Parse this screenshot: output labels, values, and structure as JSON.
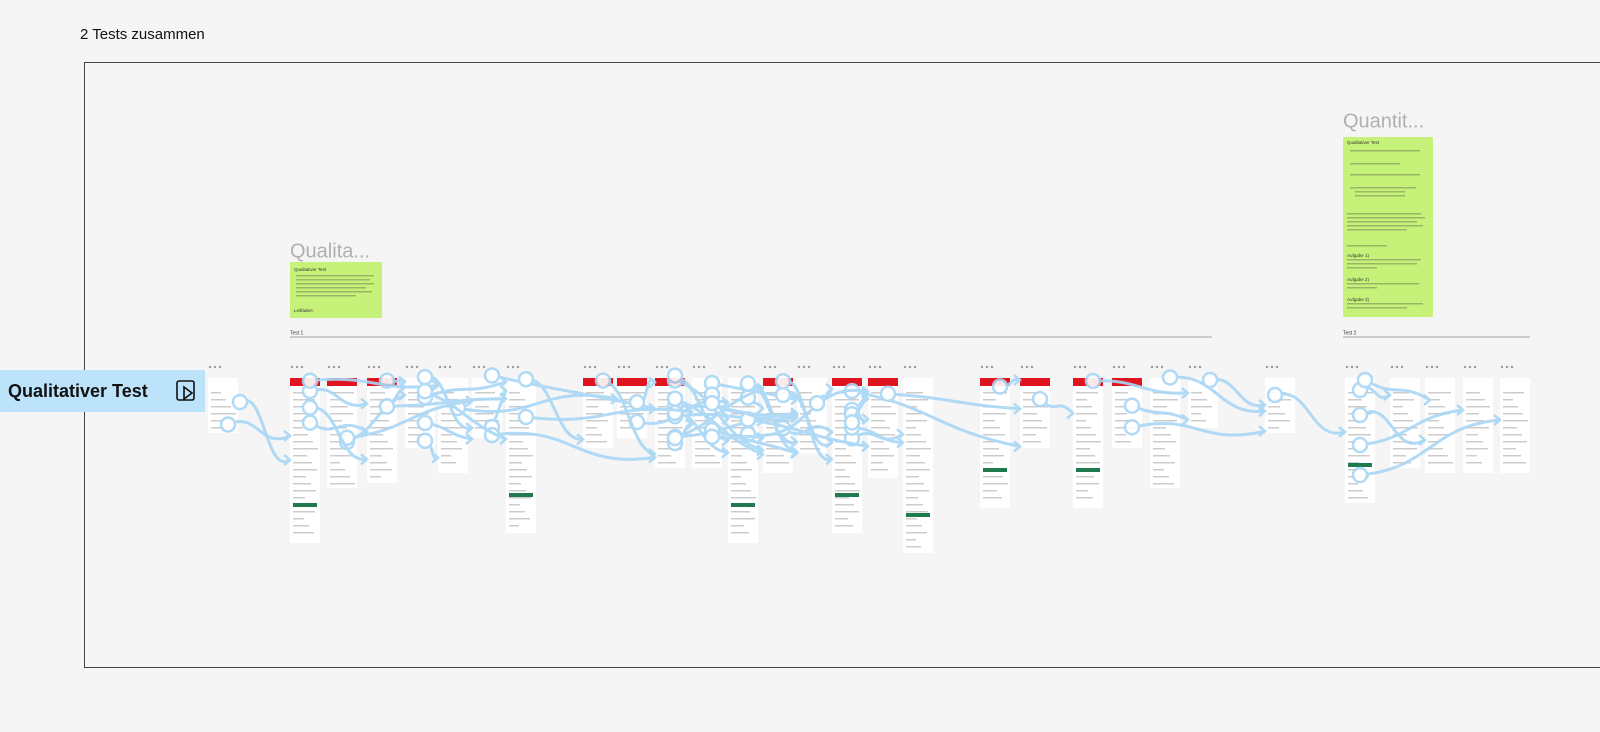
{
  "canvas": {
    "title": "2 Tests zusammen",
    "flow_label": "Qualitativer Test",
    "section_1": {
      "heading": "Qualita...",
      "divider": "Test 1",
      "note": [
        "Qualitativer Test",
        "Leitfaden:"
      ]
    },
    "section_2": {
      "heading": "Quantit...",
      "divider": "Test 2",
      "note": [
        "Qualitativer Test",
        "Aufgabe 1)",
        "Aufgabe 2)",
        "Aufgabe 3)"
      ]
    }
  }
}
